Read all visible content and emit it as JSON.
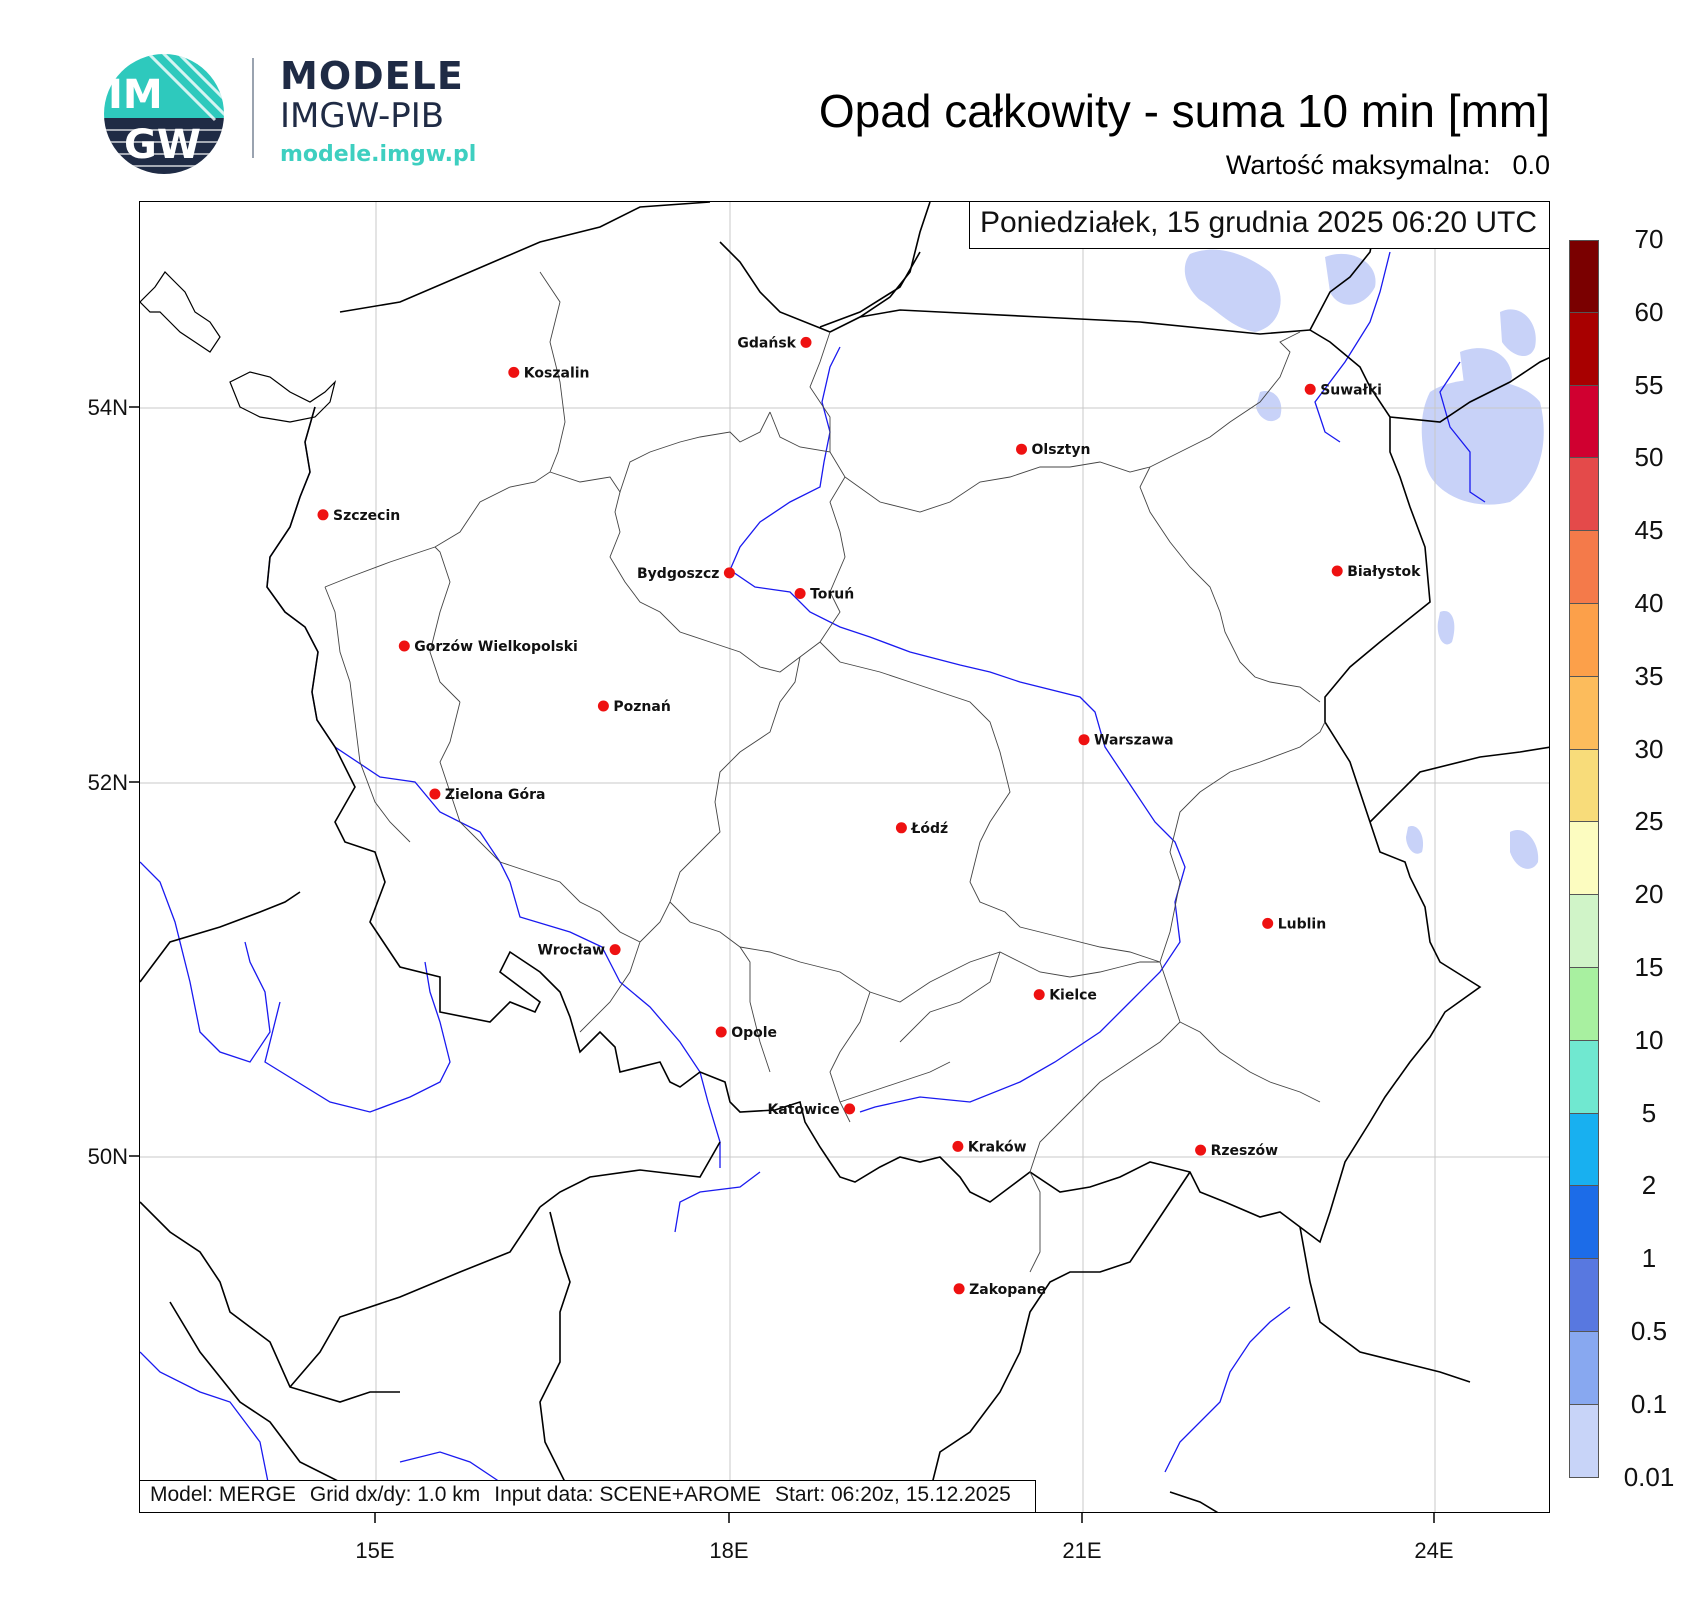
{
  "logo": {
    "badge_top": "IM",
    "badge_bottom": "GW",
    "line1": "MODELE",
    "line2": "IMGW-PIB",
    "url": "modele.imgw.pl"
  },
  "header": {
    "title": "Opad całkowity - suma 10 min [mm]",
    "max_label": "Wartość maksymalna:",
    "max_value": "0.0"
  },
  "map": {
    "date": "Poniedziałek, 15 grudnia 2025 06:20 UTC",
    "footer": {
      "model": "Model: MERGE",
      "grid": "Grid dx/dy: 1.0 km",
      "input": "Input data: SCENE+AROME",
      "start": "Start: 06:20z, 15.12.2025"
    },
    "lat_ticks": [
      "54N",
      "52N",
      "50N"
    ],
    "lon_ticks": [
      "15E",
      "18E",
      "21E",
      "24E"
    ],
    "cities": [
      {
        "name": "Gdańsk",
        "lon": 18.65,
        "lat": 54.35,
        "side": "left"
      },
      {
        "name": "Koszalin",
        "lon": 16.17,
        "lat": 54.19,
        "side": "right"
      },
      {
        "name": "Suwałki",
        "lon": 22.93,
        "lat": 54.1,
        "side": "right"
      },
      {
        "name": "Olsztyn",
        "lon": 20.48,
        "lat": 53.78,
        "side": "right"
      },
      {
        "name": "Szczecin",
        "lon": 14.55,
        "lat": 53.43,
        "side": "right"
      },
      {
        "name": "Białystok",
        "lon": 23.16,
        "lat": 53.13,
        "side": "right"
      },
      {
        "name": "Bydgoszcz",
        "lon": 18.0,
        "lat": 53.12,
        "side": "left"
      },
      {
        "name": "Toruń",
        "lon": 18.6,
        "lat": 53.01,
        "side": "right"
      },
      {
        "name": "Gorzów Wielkopolski",
        "lon": 15.24,
        "lat": 52.73,
        "side": "right"
      },
      {
        "name": "Poznań",
        "lon": 16.93,
        "lat": 52.41,
        "side": "right"
      },
      {
        "name": "Warszawa",
        "lon": 21.01,
        "lat": 52.23,
        "side": "right"
      },
      {
        "name": "Zielona Góra",
        "lon": 15.5,
        "lat": 51.94,
        "side": "right"
      },
      {
        "name": "Łódź",
        "lon": 19.46,
        "lat": 51.76,
        "side": "right"
      },
      {
        "name": "Lublin",
        "lon": 22.57,
        "lat": 51.25,
        "side": "right"
      },
      {
        "name": "Wrocław",
        "lon": 17.03,
        "lat": 51.11,
        "side": "left"
      },
      {
        "name": "Kielce",
        "lon": 20.63,
        "lat": 50.87,
        "side": "right"
      },
      {
        "name": "Opole",
        "lon": 17.93,
        "lat": 50.67,
        "side": "right"
      },
      {
        "name": "Katowice",
        "lon": 19.02,
        "lat": 50.26,
        "side": "left"
      },
      {
        "name": "Rzeszów",
        "lon": 22.0,
        "lat": 50.04,
        "side": "right"
      },
      {
        "name": "Kraków",
        "lon": 19.94,
        "lat": 50.06,
        "side": "right"
      },
      {
        "name": "Zakopane",
        "lon": 19.95,
        "lat": 49.3,
        "side": "right"
      }
    ]
  },
  "colorbar": {
    "labels": [
      "70",
      "60",
      "55",
      "50",
      "45",
      "40",
      "35",
      "30",
      "25",
      "20",
      "15",
      "10",
      "5",
      "2",
      "1",
      "0.5",
      "0.1",
      "0.01"
    ],
    "colors": [
      "#7a0000",
      "#a80000",
      "#d00030",
      "#e44a4a",
      "#f47a4a",
      "#fca04a",
      "#fcbc5c",
      "#f8dc7a",
      "#fcfcc0",
      "#d0f4c8",
      "#a8f0a0",
      "#70e8d0",
      "#18b0f0",
      "#1c6ce8",
      "#5878e0",
      "#88a8f0",
      "#c8d4f8"
    ]
  },
  "style": {
    "city_color": "#ee1111",
    "river_color": "#1a1af0",
    "lake_color": "#c8d2f8"
  }
}
